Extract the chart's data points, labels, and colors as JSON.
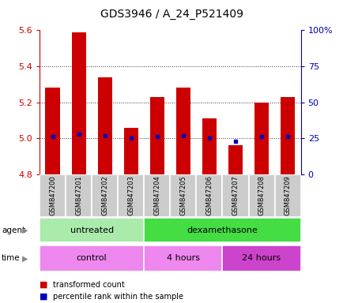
{
  "title": "GDS3946 / A_24_P521409",
  "samples": [
    "GSM847200",
    "GSM847201",
    "GSM847202",
    "GSM847203",
    "GSM847204",
    "GSM847205",
    "GSM847206",
    "GSM847207",
    "GSM847208",
    "GSM847209"
  ],
  "transformed_counts": [
    5.28,
    5.59,
    5.34,
    5.06,
    5.23,
    5.28,
    5.11,
    4.96,
    5.2,
    5.23
  ],
  "baseline": 4.8,
  "percentile_ranks": [
    26,
    28,
    27,
    25,
    26,
    27,
    25,
    23,
    26,
    26
  ],
  "ylim_left": [
    4.8,
    5.6
  ],
  "ylim_right": [
    0,
    100
  ],
  "yticks_left": [
    4.8,
    5.0,
    5.2,
    5.4,
    5.6
  ],
  "yticks_right": [
    0,
    25,
    50,
    75,
    100
  ],
  "ytick_labels_right": [
    "0",
    "25",
    "50",
    "75",
    "100%"
  ],
  "bar_color": "#cc0000",
  "dot_color": "#0000bb",
  "bar_width": 0.55,
  "agent_groups": [
    {
      "label": "untreated",
      "start": 0,
      "end": 3,
      "color": "#aaeaaa"
    },
    {
      "label": "dexamethasone",
      "start": 4,
      "end": 9,
      "color": "#44dd44"
    }
  ],
  "time_groups": [
    {
      "label": "control",
      "start": 0,
      "end": 3,
      "color": "#ee88ee"
    },
    {
      "label": "4 hours",
      "start": 4,
      "end": 6,
      "color": "#ee88ee"
    },
    {
      "label": "24 hours",
      "start": 7,
      "end": 9,
      "color": "#cc44cc"
    }
  ],
  "legend_items": [
    {
      "label": "transformed count",
      "color": "#cc0000"
    },
    {
      "label": "percentile rank within the sample",
      "color": "#0000bb"
    }
  ],
  "tick_color_left": "#cc0000",
  "tick_color_right": "#0000bb",
  "background_color": "#ffffff",
  "sample_box_color": "#cccccc",
  "grid_dotted_color": "#333333"
}
